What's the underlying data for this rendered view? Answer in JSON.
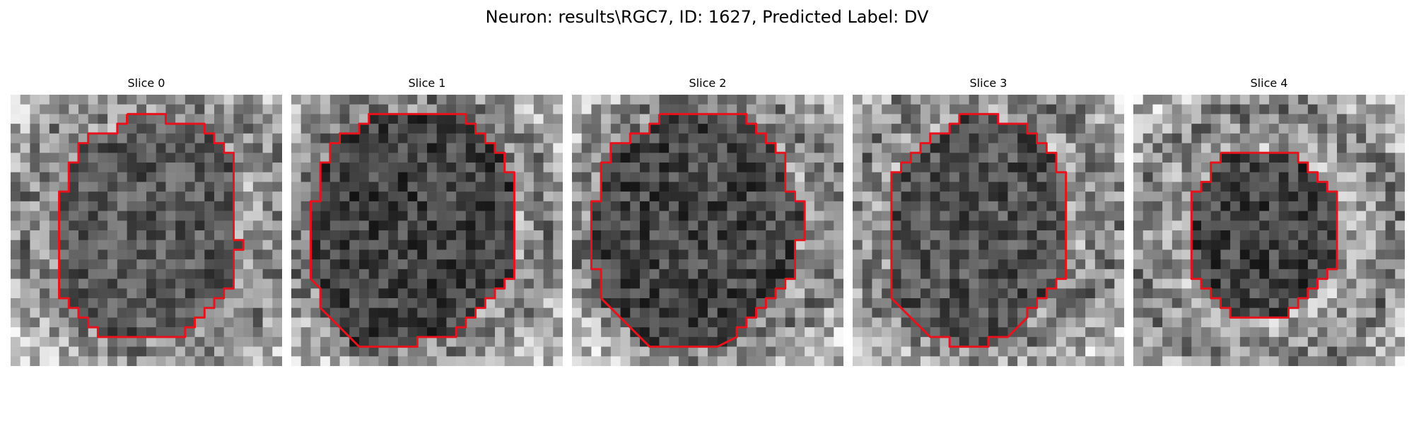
{
  "figure": {
    "title": "Neuron: results\\RGC7, ID: 1627, Predicted Label: DV"
  },
  "slices": [
    {
      "title": "Slice 0",
      "cell_darkness": 0.5,
      "contour": [
        [
          12,
          2
        ],
        [
          16,
          2
        ],
        [
          16,
          3
        ],
        [
          20,
          3
        ],
        [
          20,
          4
        ],
        [
          21,
          4
        ],
        [
          21,
          5
        ],
        [
          22,
          5
        ],
        [
          22,
          6
        ],
        [
          23,
          6
        ],
        [
          23,
          7
        ],
        [
          23,
          15
        ],
        [
          24,
          15
        ],
        [
          24,
          16
        ],
        [
          23,
          16
        ],
        [
          23,
          20
        ],
        [
          22,
          20
        ],
        [
          22,
          21
        ],
        [
          21,
          21
        ],
        [
          21,
          22
        ],
        [
          20,
          22
        ],
        [
          20,
          23
        ],
        [
          19,
          23
        ],
        [
          19,
          24
        ],
        [
          18,
          24
        ],
        [
          18,
          25
        ],
        [
          9,
          25
        ],
        [
          9,
          24
        ],
        [
          8,
          24
        ],
        [
          8,
          23
        ],
        [
          7,
          23
        ],
        [
          7,
          22
        ],
        [
          6,
          22
        ],
        [
          6,
          21
        ],
        [
          5,
          21
        ],
        [
          5,
          12
        ],
        [
          5,
          10
        ],
        [
          6,
          10
        ],
        [
          6,
          7
        ],
        [
          7,
          7
        ],
        [
          7,
          5
        ],
        [
          8,
          5
        ],
        [
          8,
          4
        ],
        [
          11,
          4
        ],
        [
          11,
          3
        ],
        [
          12,
          3
        ],
        [
          12,
          2
        ]
      ]
    },
    {
      "title": "Slice 1",
      "cell_darkness": 0.9,
      "contour": [
        [
          9,
          2
        ],
        [
          18,
          2
        ],
        [
          18,
          3
        ],
        [
          19,
          3
        ],
        [
          19,
          4
        ],
        [
          20,
          4
        ],
        [
          20,
          5
        ],
        [
          21,
          5
        ],
        [
          21,
          6
        ],
        [
          22,
          6
        ],
        [
          22,
          8
        ],
        [
          23,
          8
        ],
        [
          23,
          19
        ],
        [
          22,
          19
        ],
        [
          22,
          20
        ],
        [
          21,
          20
        ],
        [
          21,
          21
        ],
        [
          20,
          21
        ],
        [
          20,
          22
        ],
        [
          19,
          22
        ],
        [
          19,
          23
        ],
        [
          18,
          23
        ],
        [
          18,
          24
        ],
        [
          17,
          24
        ],
        [
          17,
          25
        ],
        [
          13,
          25
        ],
        [
          13,
          26
        ],
        [
          10,
          26
        ],
        [
          9,
          26
        ],
        [
          7,
          26
        ],
        [
          6,
          25
        ],
        [
          4,
          23
        ],
        [
          3,
          22
        ],
        [
          3,
          20
        ],
        [
          2,
          19
        ],
        [
          2,
          14
        ],
        [
          2,
          11
        ],
        [
          3,
          11
        ],
        [
          3,
          7
        ],
        [
          4,
          7
        ],
        [
          4,
          5
        ],
        [
          5,
          5
        ],
        [
          5,
          4
        ],
        [
          7,
          4
        ],
        [
          7,
          3
        ],
        [
          8,
          3
        ],
        [
          8,
          2
        ],
        [
          9,
          2
        ]
      ]
    },
    {
      "title": "Slice 2",
      "cell_darkness": 0.85,
      "contour": [
        [
          9,
          2
        ],
        [
          18,
          2
        ],
        [
          18,
          3
        ],
        [
          19,
          3
        ],
        [
          19,
          4
        ],
        [
          20,
          4
        ],
        [
          20,
          5
        ],
        [
          21,
          5
        ],
        [
          21,
          6
        ],
        [
          22,
          6
        ],
        [
          22,
          10
        ],
        [
          23,
          10
        ],
        [
          23,
          11
        ],
        [
          24,
          11
        ],
        [
          24,
          15
        ],
        [
          23,
          15
        ],
        [
          23,
          19
        ],
        [
          22,
          19
        ],
        [
          22,
          20
        ],
        [
          21,
          20
        ],
        [
          21,
          21
        ],
        [
          20,
          21
        ],
        [
          20,
          22
        ],
        [
          19,
          22
        ],
        [
          19,
          23
        ],
        [
          18,
          23
        ],
        [
          18,
          24
        ],
        [
          17,
          24
        ],
        [
          17,
          25
        ],
        [
          15,
          26
        ],
        [
          8,
          26
        ],
        [
          7,
          25
        ],
        [
          5,
          23
        ],
        [
          4,
          22
        ],
        [
          3,
          21
        ],
        [
          3,
          18
        ],
        [
          2,
          18
        ],
        [
          2,
          15
        ],
        [
          2,
          11
        ],
        [
          3,
          11
        ],
        [
          3,
          7
        ],
        [
          4,
          7
        ],
        [
          4,
          5
        ],
        [
          6,
          5
        ],
        [
          6,
          4
        ],
        [
          8,
          4
        ],
        [
          8,
          3
        ],
        [
          9,
          3
        ],
        [
          9,
          2
        ]
      ]
    },
    {
      "title": "Slice 3",
      "cell_darkness": 0.65,
      "contour": [
        [
          11,
          2
        ],
        [
          15,
          2
        ],
        [
          15,
          3
        ],
        [
          18,
          3
        ],
        [
          18,
          4
        ],
        [
          19,
          4
        ],
        [
          19,
          5
        ],
        [
          20,
          5
        ],
        [
          20,
          6
        ],
        [
          21,
          6
        ],
        [
          21,
          8
        ],
        [
          22,
          8
        ],
        [
          22,
          19
        ],
        [
          21,
          19
        ],
        [
          21,
          20
        ],
        [
          20,
          20
        ],
        [
          20,
          21
        ],
        [
          19,
          21
        ],
        [
          19,
          22
        ],
        [
          18,
          22
        ],
        [
          18,
          23
        ],
        [
          16,
          25
        ],
        [
          14,
          25
        ],
        [
          14,
          26
        ],
        [
          10,
          26
        ],
        [
          10,
          25
        ],
        [
          8,
          25
        ],
        [
          7,
          24
        ],
        [
          6,
          23
        ],
        [
          5,
          22
        ],
        [
          4,
          21
        ],
        [
          4,
          8
        ],
        [
          5,
          8
        ],
        [
          5,
          7
        ],
        [
          6,
          7
        ],
        [
          6,
          6
        ],
        [
          7,
          6
        ],
        [
          7,
          5
        ],
        [
          8,
          5
        ],
        [
          8,
          4
        ],
        [
          10,
          4
        ],
        [
          10,
          3
        ],
        [
          11,
          3
        ],
        [
          11,
          2
        ]
      ]
    },
    {
      "title": "Slice 4",
      "cell_darkness": 0.9,
      "contour": [
        [
          9,
          6
        ],
        [
          17,
          6
        ],
        [
          17,
          7
        ],
        [
          18,
          7
        ],
        [
          18,
          8
        ],
        [
          19,
          8
        ],
        [
          19,
          9
        ],
        [
          20,
          9
        ],
        [
          20,
          10
        ],
        [
          21,
          10
        ],
        [
          21,
          18
        ],
        [
          20,
          18
        ],
        [
          20,
          19
        ],
        [
          19,
          19
        ],
        [
          19,
          20
        ],
        [
          18,
          20
        ],
        [
          18,
          21
        ],
        [
          17,
          21
        ],
        [
          17,
          22
        ],
        [
          16,
          22
        ],
        [
          16,
          23
        ],
        [
          10,
          23
        ],
        [
          10,
          22
        ],
        [
          9,
          22
        ],
        [
          9,
          21
        ],
        [
          8,
          21
        ],
        [
          8,
          20
        ],
        [
          7,
          20
        ],
        [
          7,
          19
        ],
        [
          6,
          19
        ],
        [
          6,
          10
        ],
        [
          7,
          10
        ],
        [
          7,
          9
        ],
        [
          8,
          9
        ],
        [
          8,
          7
        ],
        [
          9,
          7
        ],
        [
          9,
          6
        ]
      ]
    }
  ],
  "style": {
    "contour_color": "#e8121d"
  }
}
